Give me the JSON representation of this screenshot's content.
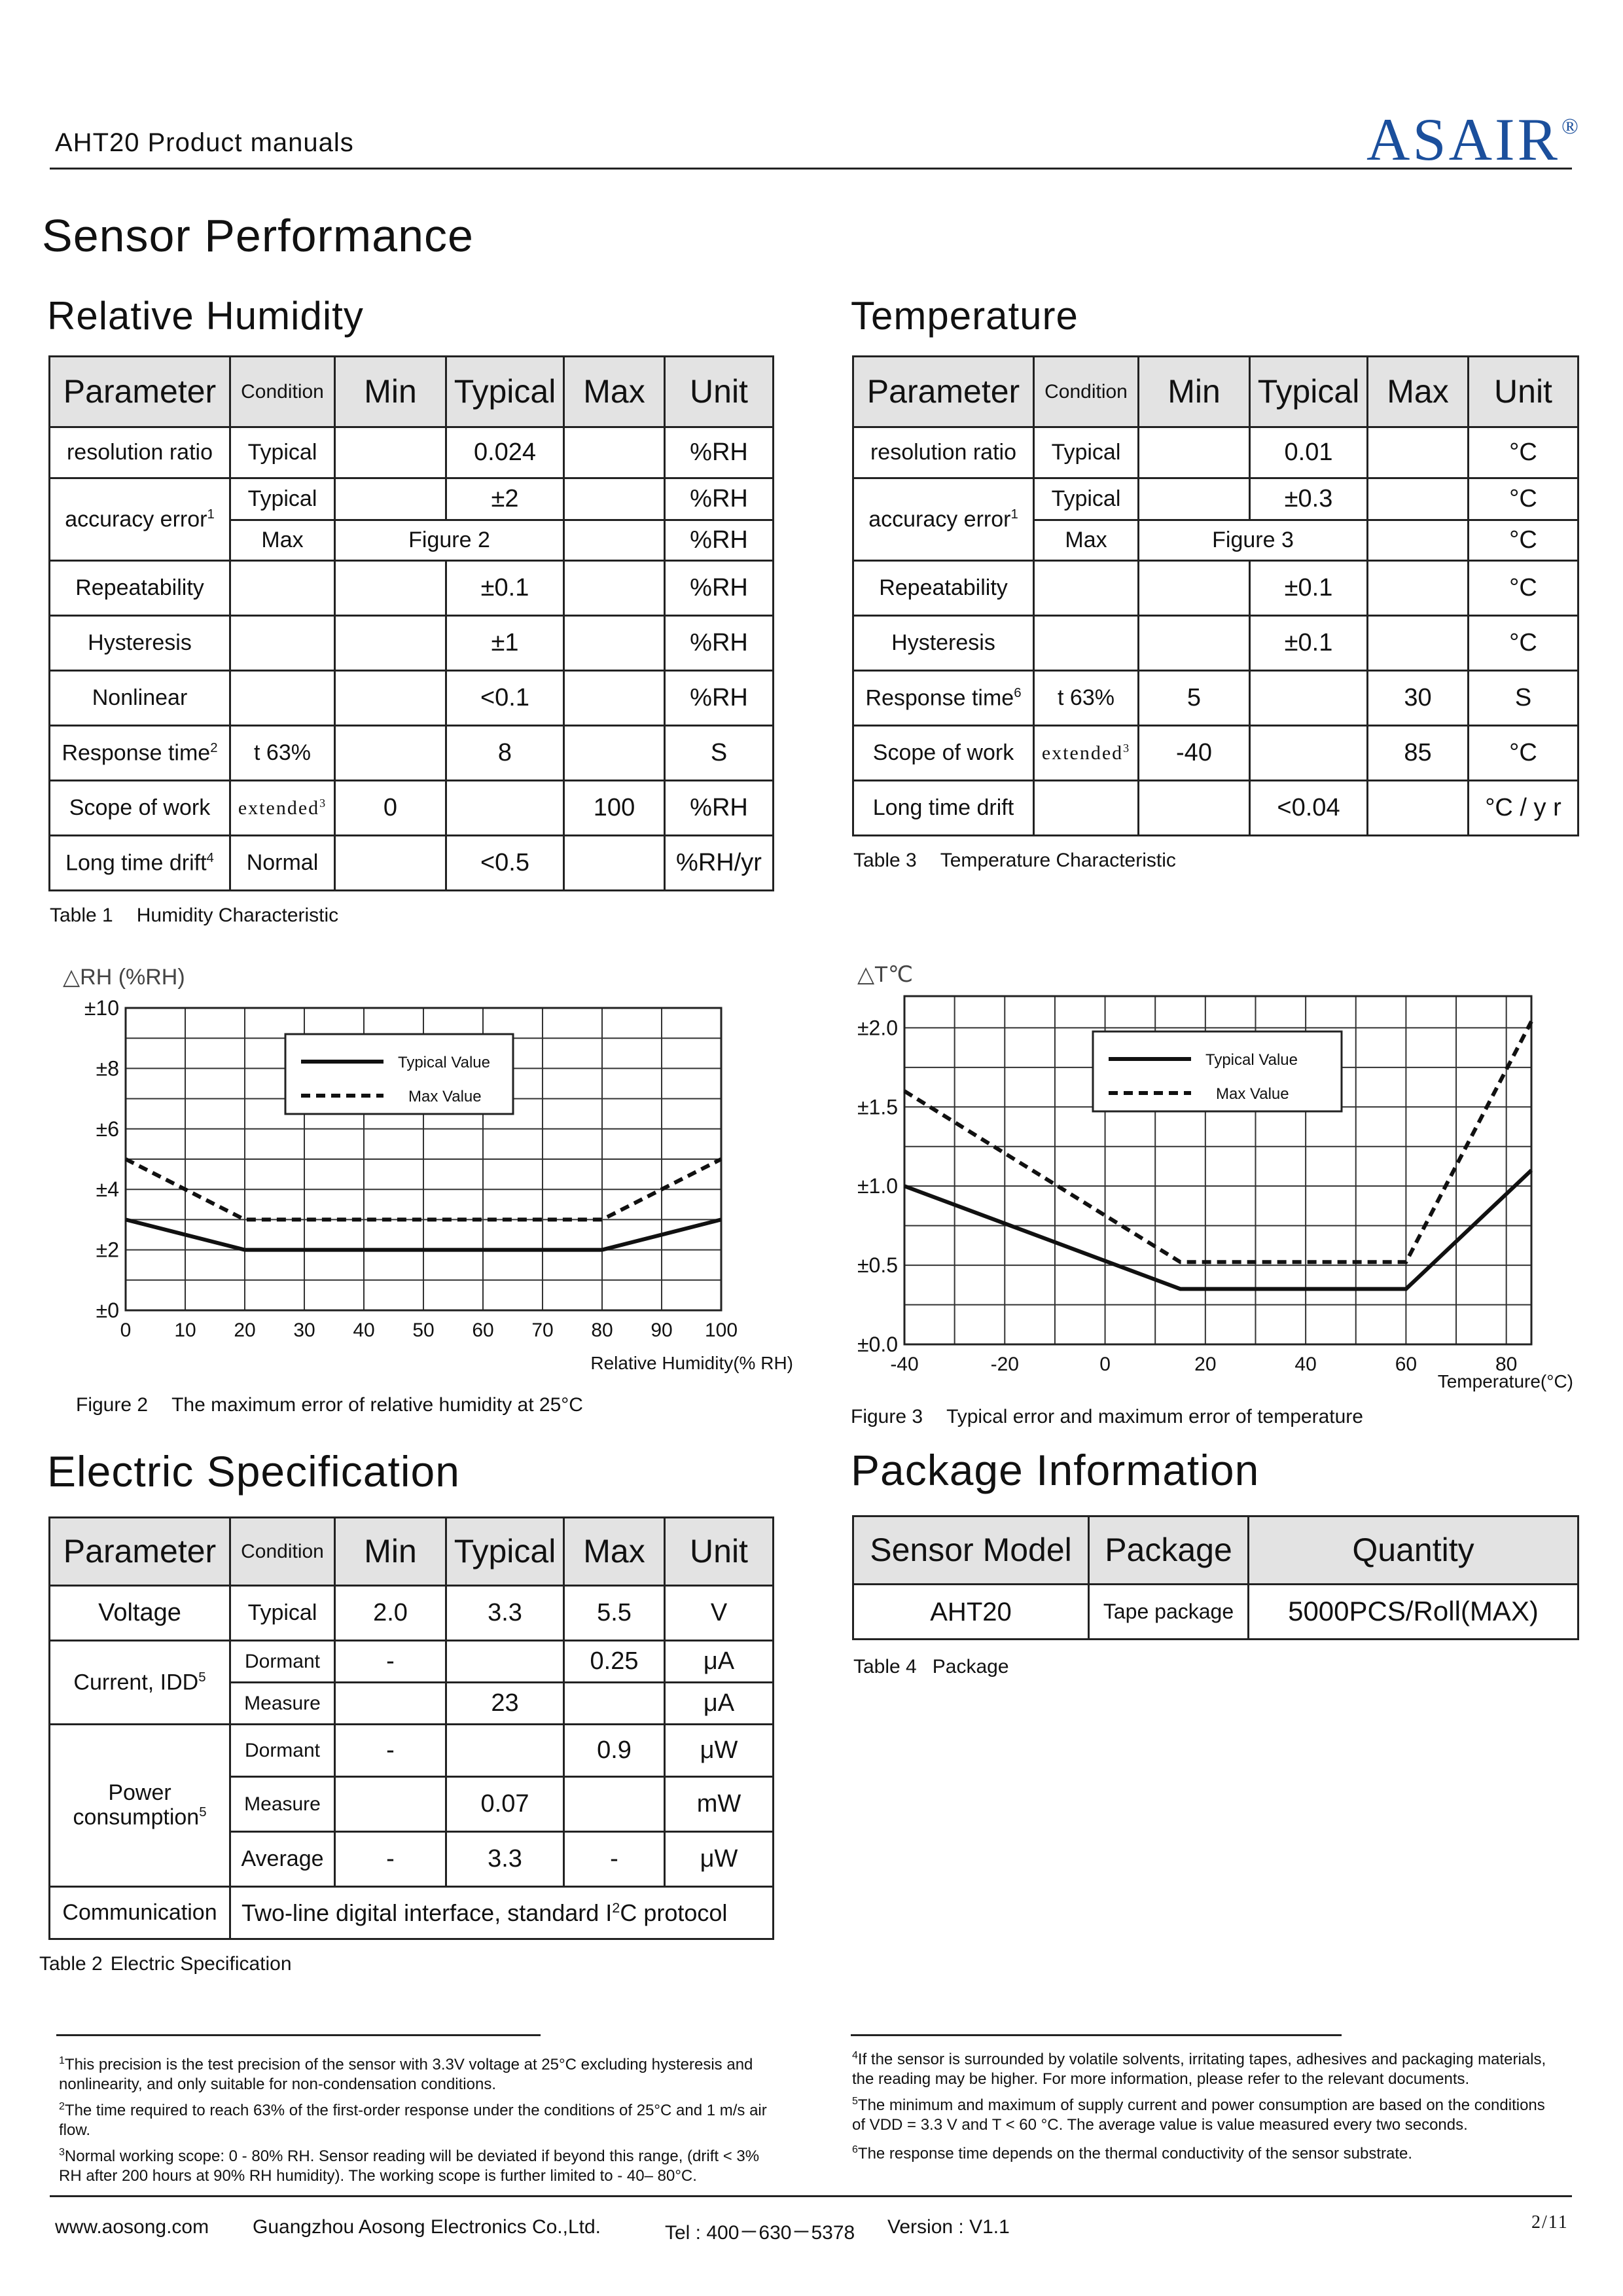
{
  "header": {
    "title": "AHT20 Product manuals",
    "logo": "ASAIR",
    "logo_mark": "®"
  },
  "page_title": "Sensor Performance",
  "humidity": {
    "heading": "Relative Humidity",
    "columns": [
      "Parameter",
      "Condition",
      "Min",
      "Typical",
      "Max",
      "Unit"
    ],
    "rows": {
      "resolution": {
        "param": "resolution ratio",
        "cond": "Typical",
        "min": "",
        "typ": "0.024",
        "max": "",
        "unit": "%RH"
      },
      "acc1": {
        "param": "accuracy error",
        "sup": "1",
        "cond": "Typical",
        "min": "",
        "typ": "±2",
        "max": "",
        "unit": "%RH"
      },
      "acc2": {
        "cond": "Max",
        "merged": "Figure 2",
        "max": "",
        "unit": "%RH"
      },
      "repeat": {
        "param": "Repeatability",
        "cond": "",
        "min": "",
        "typ": "±0.1",
        "max": "",
        "unit": "%RH"
      },
      "hyst": {
        "param": "Hysteresis",
        "cond": "",
        "min": "",
        "typ": "±1",
        "max": "",
        "unit": "%RH"
      },
      "nonlin": {
        "param": "Nonlinear",
        "cond": "",
        "min": "",
        "typ": "<0.1",
        "max": "",
        "unit": "%RH"
      },
      "resp": {
        "param": "Response time",
        "sup": "2",
        "cond": "t 63%",
        "min": "",
        "typ": "8",
        "max": "",
        "unit": "S"
      },
      "scope": {
        "param": "Scope of work",
        "cond": "extended",
        "cond_sup": "3",
        "min": "0",
        "typ": "",
        "max": "100",
        "unit": "%RH"
      },
      "drift": {
        "param": "Long time drift",
        "sup": "4",
        "cond": "Normal",
        "min": "",
        "typ": "<0.5",
        "max": "",
        "unit": "%RH/yr"
      }
    },
    "caption_num": "Table 1",
    "caption": "Humidity Characteristic"
  },
  "temperature": {
    "heading": "Temperature",
    "columns": [
      "Parameter",
      "Condition",
      "Min",
      "Typical",
      "Max",
      "Unit"
    ],
    "rows": {
      "resolution": {
        "param": "resolution ratio",
        "cond": "Typical",
        "min": "",
        "typ": "0.01",
        "max": "",
        "unit": "°C"
      },
      "acc1": {
        "param": "accuracy error",
        "sup": "1",
        "cond": "Typical",
        "min": "",
        "typ": "±0.3",
        "max": "",
        "unit": "°C"
      },
      "acc2": {
        "cond": "Max",
        "merged": "Figure 3",
        "max": "",
        "unit": "°C"
      },
      "repeat": {
        "param": "Repeatability",
        "cond": "",
        "min": "",
        "typ": "±0.1",
        "max": "",
        "unit": "°C"
      },
      "hyst": {
        "param": "Hysteresis",
        "cond": "",
        "min": "",
        "typ": "±0.1",
        "max": "",
        "unit": "°C"
      },
      "resp": {
        "param": "Response time",
        "sup": "6",
        "cond": "t 63%",
        "min": "5",
        "typ": "",
        "max": "30",
        "unit": "S"
      },
      "scope": {
        "param": "Scope of work",
        "cond": "extended",
        "cond_sup": "3",
        "min": "-40",
        "typ": "",
        "max": "85",
        "unit": "°C"
      },
      "drift": {
        "param": "Long time drift",
        "cond": "",
        "min": "",
        "typ": "<0.04",
        "max": "",
        "unit": "°C / y r"
      }
    },
    "caption_num": "Table 3",
    "caption": "Temperature Characteristic"
  },
  "chart_data": [
    {
      "type": "line",
      "title": "△RH (%RH)",
      "xlabel": "Relative Humidity(% RH)",
      "xlim": [
        0,
        100
      ],
      "ylim": [
        0,
        10
      ],
      "x_ticks": [
        "0",
        "10",
        "20",
        "30",
        "40",
        "50",
        "60",
        "70",
        "80",
        "90",
        "100"
      ],
      "y_ticks": [
        "±0",
        "±2",
        "±4",
        "±6",
        "±8",
        "±10"
      ],
      "grid": true,
      "legend": "top-center",
      "series": [
        {
          "name": "Typical Value",
          "style": "solid",
          "x": [
            0,
            20,
            80,
            100
          ],
          "y": [
            3,
            2,
            2,
            3
          ]
        },
        {
          "name": "Max Value",
          "style": "dashed",
          "x": [
            0,
            20,
            80,
            100
          ],
          "y": [
            5,
            3,
            3,
            5
          ]
        }
      ],
      "caption_num": "Figure 2",
      "caption": "The maximum error of relative humidity at 25°C"
    },
    {
      "type": "line",
      "title": "△T℃",
      "xlabel": "Temperature(°C)",
      "xlim": [
        -40,
        85
      ],
      "ylim": [
        0,
        2.2
      ],
      "x_ticks": [
        "-40",
        "-20",
        "0",
        "20",
        "40",
        "60",
        "80"
      ],
      "y_ticks": [
        "±0.0",
        "±0.5",
        "±1.0",
        "±1.5",
        "±2.0"
      ],
      "grid": true,
      "legend": "top-right",
      "series": [
        {
          "name": "Typical Value",
          "style": "solid",
          "x": [
            -40,
            15,
            60,
            85
          ],
          "y": [
            1.0,
            0.35,
            0.35,
            1.1
          ]
        },
        {
          "name": "Max Value",
          "style": "dashed",
          "x": [
            -40,
            15,
            60,
            85
          ],
          "y": [
            1.6,
            0.52,
            0.52,
            2.04
          ]
        }
      ],
      "caption_num": "Figure 3",
      "caption": "Typical error and maximum error of temperature"
    }
  ],
  "electric": {
    "heading": "Electric Specification",
    "columns": [
      "Parameter",
      "Condition",
      "Min",
      "Typical",
      "Max",
      "Unit"
    ],
    "rows": {
      "voltage": {
        "param": "Voltage",
        "cond": "Typical",
        "min": "2.0",
        "typ": "3.3",
        "max": "5.5",
        "unit": "V"
      },
      "cur1": {
        "param": "Current, IDD",
        "sup": "5",
        "cond": "Dormant",
        "min": "-",
        "typ": "",
        "max": "0.25",
        "unit": "μA"
      },
      "cur2": {
        "cond": "Measure",
        "min": "",
        "typ": "23",
        "max": "",
        "unit": "μA"
      },
      "pow1": {
        "param_a": "Power",
        "param_b": "consumption",
        "sup": "5",
        "cond": "Dormant",
        "min": "-",
        "typ": "",
        "max": "0.9",
        "unit": "μW"
      },
      "pow2": {
        "cond": "Measure",
        "min": "",
        "typ": "0.07",
        "max": "",
        "unit": "mW"
      },
      "pow3": {
        "cond": "Average",
        "min": "-",
        "typ": "3.3",
        "max": "-",
        "unit": "μW"
      },
      "comm": {
        "param": "Communication",
        "value_a": "Two-line digital interface, standard I",
        "value_sup": "2",
        "value_b": "C protocol"
      }
    },
    "caption_num": "Table 2",
    "caption": "Electric Specification"
  },
  "package": {
    "heading": "Package Information",
    "columns": [
      "Sensor Model",
      "Package",
      "Quantity"
    ],
    "row": {
      "model": "AHT20",
      "package": "Tape package",
      "quantity": "5000PCS/Roll(MAX)"
    },
    "caption_num": "Table 4",
    "caption": "Package"
  },
  "footnotes": {
    "f1": "This precision is the test precision of the sensor with 3.3V voltage at 25°C excluding hysteresis and nonlinearity, and only suitable for non-condensation conditions.",
    "f2": "The time required to reach 63% of the first-order response under the conditions of 25°C and 1 m/s air flow.",
    "f3": "Normal working scope: 0 - 80% RH. Sensor reading will be deviated if beyond this range, (drift < 3% RH after 200 hours at 90% RH humidity). The working scope is further limited to - 40– 80°C.",
    "f4": "If the sensor is surrounded by volatile solvents, irritating tapes, adhesives and packaging materials, the reading may be higher. For more information, please refer to the relevant documents.",
    "f5": "The minimum and maximum of supply current and power consumption are based on the conditions of VDD = 3.3 V and T < 60 °C. The average value is value measured every two seconds.",
    "f6": "The response time depends on the thermal conductivity of the sensor substrate."
  },
  "footer": {
    "website": "www.aosong.com",
    "company": "Guangzhou Aosong Electronics Co.,Ltd.",
    "tel": "Tel : 400－630－5378",
    "version": "Version : V1.1",
    "page": "2/11"
  }
}
